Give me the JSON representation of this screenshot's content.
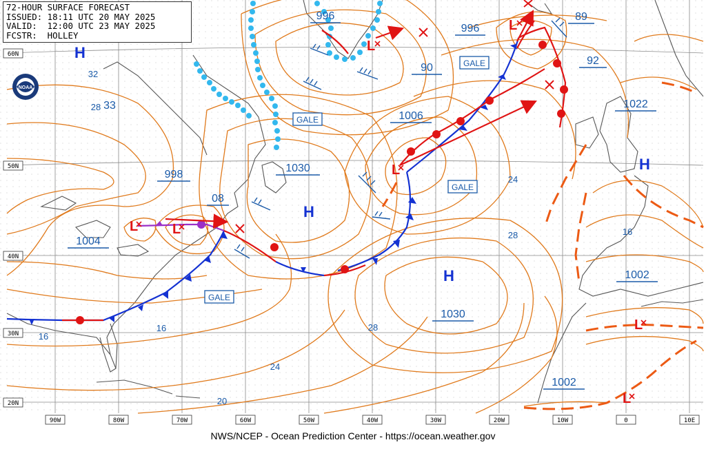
{
  "header": {
    "line1": "72-HOUR SURFACE FORECAST",
    "line2": "ISSUED: 18:11 UTC 20 MAY 2025",
    "line3": "VALID:  12:00 UTC 23 MAY 2025",
    "line4": "FCSTR:  HOLLEY"
  },
  "footer": "NWS/NCEP - Ocean Prediction Center - https://ocean.weather.gov",
  "logo": "NOAA",
  "lat_labels": [
    "60N",
    "50N",
    "40N",
    "30N",
    "20N"
  ],
  "lon_labels": [
    "90W",
    "80W",
    "70W",
    "60W",
    "50W",
    "40W",
    "30W",
    "20W",
    "10W",
    "0",
    "10E"
  ],
  "highs": [
    "H",
    "H",
    "H",
    "H"
  ],
  "lows": [
    "L",
    "L",
    "L",
    "L",
    "L",
    "L",
    "L",
    "L",
    "L"
  ],
  "boxed_pressures": [
    "996",
    "996",
    "89",
    "90",
    "92",
    "1006",
    "1022",
    "998",
    "1030",
    "08",
    "1004",
    "1002",
    "1030",
    "1002"
  ],
  "plain_pressures": [
    "32",
    "28",
    "33",
    "24",
    "28",
    "16",
    "16",
    "16",
    "24",
    "28",
    "20"
  ],
  "warnings": [
    "GALE",
    "GALE",
    "GALE",
    "GALE"
  ],
  "colors": {
    "isobar": "#e07a1c",
    "cold_front": "#1432d2",
    "warm_front": "#e01414",
    "occluded": "#9b30c8",
    "ice_edge": "#33b8ee",
    "trough": "#ec5a14",
    "label_blue": "#1a5aa8",
    "grid": "#8a8a8a",
    "coast": "#555555"
  },
  "icons": [
    "noaa-logo-icon",
    "wind-barb-icon",
    "low-track-arrow-icon"
  ]
}
